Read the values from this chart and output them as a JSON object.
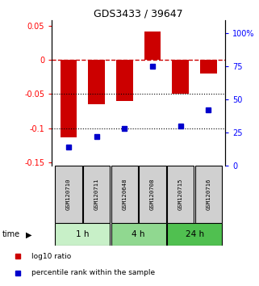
{
  "title": "GDS3433 / 39647",
  "samples": [
    "GSM120710",
    "GSM120711",
    "GSM120648",
    "GSM120708",
    "GSM120715",
    "GSM120716"
  ],
  "log10_ratio": [
    -0.113,
    -0.065,
    -0.06,
    0.041,
    -0.05,
    -0.02
  ],
  "percentile_rank": [
    14,
    22,
    28,
    75,
    30,
    42
  ],
  "groups": [
    {
      "label": "1 h",
      "indices": [
        0,
        1
      ],
      "color": "#c8f0c8"
    },
    {
      "label": "4 h",
      "indices": [
        2,
        3
      ],
      "color": "#90d890"
    },
    {
      "label": "24 h",
      "indices": [
        4,
        5
      ],
      "color": "#50c050"
    }
  ],
  "bar_color": "#cc0000",
  "square_color": "#0000cc",
  "left_ylim": [
    -0.155,
    0.058
  ],
  "right_ylim": [
    0,
    110
  ],
  "left_yticks": [
    -0.15,
    -0.1,
    -0.05,
    0.0,
    0.05
  ],
  "left_yticklabels": [
    "-0.15",
    "-0.1",
    "-0.05",
    "0",
    "0.05"
  ],
  "right_yticks": [
    0,
    25,
    50,
    75,
    100
  ],
  "right_yticklabels": [
    "0",
    "25",
    "50",
    "75",
    "100%"
  ],
  "hline_dotted": [
    -0.05,
    -0.1
  ],
  "legend_items": [
    {
      "label": "log10 ratio",
      "color": "#cc0000"
    },
    {
      "label": "percentile rank within the sample",
      "color": "#0000cc"
    }
  ],
  "sample_box_color": "#d0d0d0",
  "group_colors": [
    "#c8f0c8",
    "#90d890",
    "#50c050"
  ]
}
